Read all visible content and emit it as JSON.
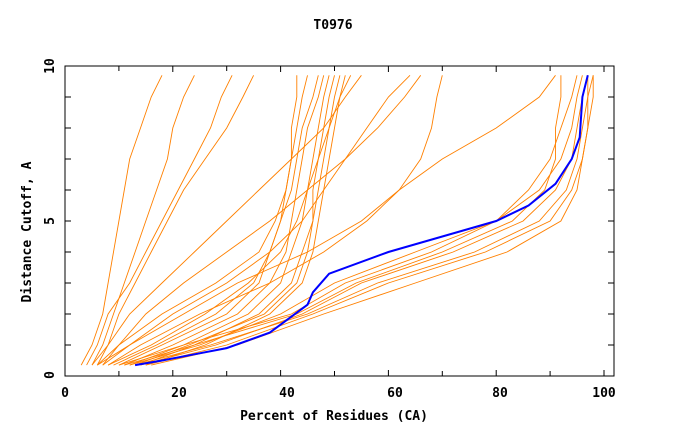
{
  "chart_data": {
    "type": "line",
    "title": "T0976",
    "xlabel": "Percent of Residues (CA)",
    "ylabel": "Distance Cutoff, A",
    "xlim": [
      0,
      102
    ],
    "ylim": [
      0,
      10
    ],
    "x_ticks": [
      "0",
      "20",
      "40",
      "60",
      "80",
      "100"
    ],
    "y_ticks": [
      "0",
      "5",
      "10"
    ],
    "grid": false,
    "legend": "none",
    "colors": {
      "models": "#ff8000",
      "highlight": "#0000ff"
    },
    "y_levels": [
      0.35,
      1,
      2,
      3,
      4,
      5,
      6,
      7,
      8,
      9,
      9.7
    ],
    "series": [
      {
        "x": [
          3,
          5,
          7,
          8,
          9,
          10,
          11,
          12,
          14,
          16,
          18
        ]
      },
      {
        "x": [
          5,
          7,
          9,
          11,
          13,
          15,
          17,
          19,
          20,
          22,
          24
        ]
      },
      {
        "x": [
          6,
          8,
          10,
          13,
          16,
          19,
          22,
          26,
          30,
          33,
          35
        ]
      },
      {
        "x": [
          4,
          6,
          8,
          12,
          15,
          18,
          21,
          24,
          27,
          29,
          31
        ]
      },
      {
        "x": [
          6,
          10,
          18,
          28,
          36,
          39,
          41,
          42,
          43,
          44,
          45
        ]
      },
      {
        "x": [
          10,
          18,
          30,
          36,
          38,
          40,
          42,
          43,
          44,
          46,
          47
        ]
      },
      {
        "x": [
          12,
          22,
          34,
          40,
          42,
          44,
          45,
          46,
          47,
          48,
          49
        ]
      },
      {
        "x": [
          14,
          24,
          36,
          42,
          44,
          46,
          47,
          48,
          49,
          50,
          51
        ]
      },
      {
        "x": [
          15,
          26,
          38,
          44,
          46,
          47,
          48,
          49,
          50,
          51,
          52
        ]
      },
      {
        "x": [
          8,
          16,
          26,
          34,
          40,
          43,
          45,
          47,
          49,
          51,
          53
        ]
      },
      {
        "x": [
          11,
          20,
          32,
          38,
          41,
          42,
          43,
          44,
          45,
          47,
          48
        ]
      },
      {
        "x": [
          13,
          23,
          37,
          43,
          45,
          46,
          46,
          47,
          48,
          49,
          50
        ]
      },
      {
        "x": [
          9,
          17,
          28,
          35,
          38,
          40,
          41,
          42,
          42,
          43,
          43
        ]
      },
      {
        "x": [
          12,
          25,
          40,
          50,
          65,
          80,
          88,
          92,
          94,
          95,
          96
        ]
      },
      {
        "x": [
          14,
          28,
          44,
          55,
          72,
          85,
          91,
          94,
          95,
          96,
          97
        ]
      },
      {
        "x": [
          15,
          30,
          46,
          60,
          78,
          90,
          94,
          96,
          97,
          97,
          98
        ]
      },
      {
        "x": [
          10,
          22,
          42,
          52,
          68,
          80,
          86,
          90,
          92,
          94,
          95
        ]
      },
      {
        "x": [
          16,
          32,
          48,
          65,
          82,
          92,
          95,
          96,
          97,
          98,
          98
        ]
      },
      {
        "x": [
          13,
          27,
          45,
          58,
          76,
          88,
          93,
          95,
          96,
          97,
          97
        ]
      },
      {
        "x": [
          11,
          24,
          43,
          54,
          70,
          83,
          89,
          91,
          91,
          92,
          92
        ]
      },
      {
        "x": [
          6,
          12,
          22,
          32,
          45,
          55,
          62,
          66,
          68,
          69,
          70
        ]
      },
      {
        "x": [
          7,
          10,
          15,
          22,
          30,
          38,
          45,
          52,
          58,
          63,
          66
        ]
      },
      {
        "x": [
          5,
          8,
          12,
          18,
          24,
          30,
          36,
          42,
          48,
          52,
          55
        ]
      },
      {
        "x": [
          8,
          14,
          25,
          38,
          48,
          56,
          62,
          70,
          80,
          88,
          91
        ]
      },
      {
        "x": [
          7,
          12,
          20,
          30,
          38,
          44,
          48,
          52,
          56,
          60,
          64
        ]
      }
    ],
    "highlight": {
      "x": [
        13,
        18,
        24,
        30,
        38,
        45,
        46,
        49,
        60,
        70,
        80,
        86,
        91,
        94,
        95.5,
        96,
        97
      ],
      "y": [
        0.35,
        0.5,
        0.7,
        0.9,
        1.4,
        2.3,
        2.7,
        3.3,
        4,
        4.5,
        5,
        5.5,
        6.2,
        7,
        7.7,
        9,
        9.7
      ]
    }
  }
}
